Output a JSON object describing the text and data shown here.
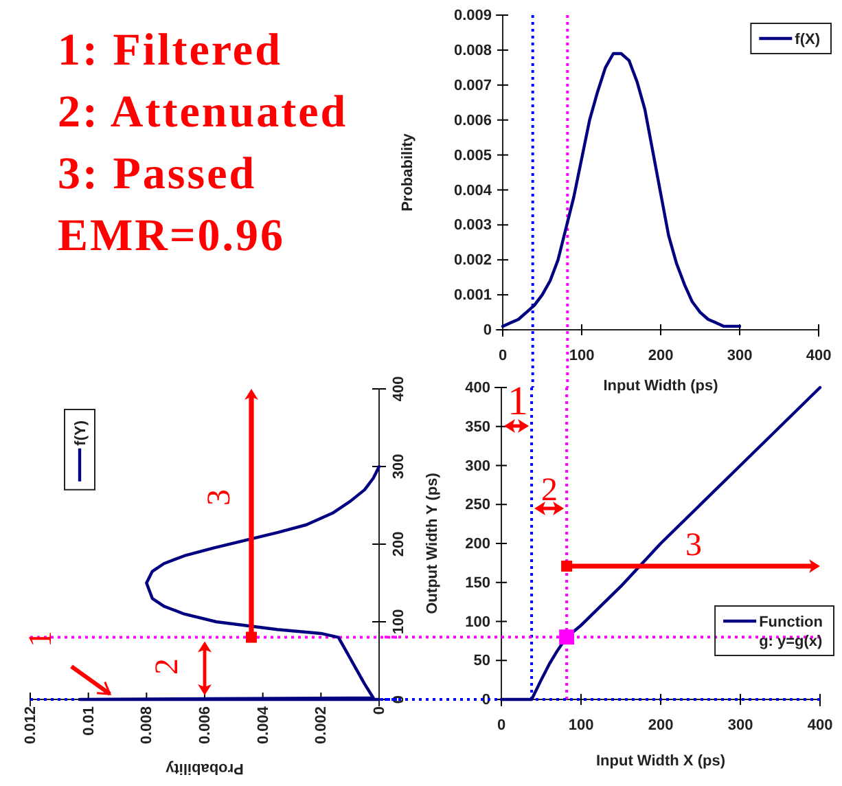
{
  "chart_data": [
    {
      "type": "other",
      "annotations": [
        "1: Filtered",
        "2: Attenuated",
        "3: Passed",
        "EMR=0.96"
      ]
    },
    {
      "type": "line",
      "xlabel": "Input Width (ps)",
      "ylabel": "Probability",
      "xlim": [
        0,
        400
      ],
      "ylim": [
        0,
        0.009
      ],
      "xticks": [
        0,
        100,
        200,
        300,
        400
      ],
      "yticks": [
        0,
        0.001,
        0.002,
        0.003,
        0.004,
        0.005,
        0.006,
        0.007,
        0.008,
        0.009
      ],
      "legend": "top right",
      "grid": false,
      "marker": "none",
      "line_style": "solid",
      "ref_lines": [
        {
          "axis": "x",
          "value": 38,
          "color": "#0000ff",
          "line_style": "dotted"
        },
        {
          "axis": "x",
          "value": 82,
          "color": "#ff00ff",
          "line_style": "dotted"
        }
      ],
      "series": [
        {
          "name": "f(X)",
          "color": "#000080",
          "x": [
            0,
            10,
            20,
            30,
            40,
            50,
            60,
            70,
            80,
            90,
            100,
            110,
            120,
            130,
            140,
            150,
            160,
            170,
            180,
            190,
            200,
            210,
            220,
            230,
            240,
            250,
            260,
            270,
            280,
            290,
            300
          ],
          "values": [
            0.0001,
            0.0002,
            0.0003,
            0.0005,
            0.0007,
            0.001,
            0.0014,
            0.002,
            0.0029,
            0.0038,
            0.0049,
            0.006,
            0.0068,
            0.0075,
            0.0079,
            0.0079,
            0.0077,
            0.0071,
            0.0063,
            0.0051,
            0.0039,
            0.0027,
            0.0019,
            0.0013,
            0.0008,
            0.0005,
            0.0003,
            0.0002,
            0.0001,
            0.0001,
            0.0001
          ]
        }
      ]
    },
    {
      "type": "line",
      "xlabel": "Probability",
      "xlim": [
        0.012,
        0
      ],
      "ylim": [
        0,
        400
      ],
      "xticks": [
        0.012,
        0.01,
        0.008,
        0.006,
        0.004,
        0.002,
        0
      ],
      "yticks": [
        0,
        100,
        200,
        300,
        400
      ],
      "legend": "top left",
      "grid": false,
      "marker": "none",
      "line_style": "solid",
      "ref_lines": [
        {
          "axis": "y",
          "value": 0,
          "color": "#0000ff",
          "line_style": "dotted"
        },
        {
          "axis": "y",
          "value": 80,
          "color": "#ff00ff",
          "line_style": "dotted"
        }
      ],
      "annotations": [
        "1",
        "2",
        "3"
      ],
      "series": [
        {
          "name": "f(Y)",
          "color": "#000080",
          "x": [
            0,
            0.0103,
            0.0002,
            0.0005,
            0.0008,
            0.0011,
            0.0014,
            0.002,
            0.0035,
            0.0056,
            0.0067,
            0.0074,
            0.0078,
            0.008,
            0.0078,
            0.0074,
            0.0067,
            0.0057,
            0.0046,
            0.0035,
            0.0025,
            0.0016,
            0.001,
            0.0005,
            0.0002,
            0
          ],
          "values": [
            0,
            0,
            2,
            20,
            40,
            60,
            80,
            85,
            90,
            100,
            110,
            120,
            130,
            150,
            165,
            175,
            185,
            195,
            205,
            215,
            225,
            240,
            255,
            270,
            285,
            300
          ]
        }
      ]
    },
    {
      "type": "line",
      "xlabel": "Input Width X (ps)",
      "ylabel": "Output Width Y (ps)",
      "xlim": [
        0,
        400
      ],
      "ylim": [
        0,
        400
      ],
      "xticks": [
        0,
        100,
        200,
        300,
        400
      ],
      "yticks": [
        0,
        50,
        100,
        150,
        200,
        250,
        300,
        350,
        400
      ],
      "legend": "bottom right",
      "grid": false,
      "marker": "none",
      "line_style": "solid",
      "ref_lines": [
        {
          "axis": "x",
          "value": 38,
          "color": "#0000ff",
          "line_style": "dotted"
        },
        {
          "axis": "x",
          "value": 82,
          "color": "#ff00ff",
          "line_style": "dotted"
        },
        {
          "axis": "y",
          "value": 0,
          "color": "#0000ff",
          "line_style": "dotted"
        },
        {
          "axis": "y",
          "value": 80,
          "color": "#ff00ff",
          "line_style": "dotted"
        }
      ],
      "annotations": [
        "1",
        "2",
        "3"
      ],
      "series": [
        {
          "name": "Function g: y=g(x)",
          "color": "#000080",
          "x": [
            0,
            38,
            50,
            60,
            70,
            82,
            100,
            150,
            200,
            300,
            400
          ],
          "values": [
            0,
            0,
            25,
            45,
            62,
            80,
            95,
            145,
            200,
            300,
            400
          ]
        },
        {
          "type": "scatter",
          "color": "#ff00ff",
          "marker": "square",
          "x": [
            82
          ],
          "values": [
            80
          ]
        }
      ]
    }
  ]
}
